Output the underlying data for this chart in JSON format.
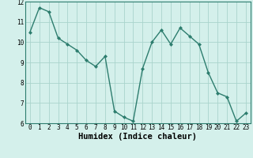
{
  "xlabel": "Humidex (Indice chaleur)",
  "ylabel": "",
  "x_values": [
    0,
    1,
    2,
    3,
    4,
    5,
    6,
    7,
    8,
    9,
    10,
    11,
    12,
    13,
    14,
    15,
    16,
    17,
    18,
    19,
    20,
    21,
    22,
    23
  ],
  "y_values": [
    10.5,
    11.7,
    11.5,
    10.2,
    9.9,
    9.6,
    9.1,
    8.8,
    9.3,
    6.6,
    6.3,
    6.1,
    8.7,
    10.0,
    10.6,
    9.9,
    10.7,
    10.3,
    9.9,
    8.5,
    7.5,
    7.3,
    6.1,
    6.5
  ],
  "line_color": "#2d7d6e",
  "marker": "D",
  "marker_size": 2.0,
  "bg_color": "#d4f0eb",
  "grid_color": "#aad4cc",
  "ylim": [
    6,
    12
  ],
  "xlim": [
    -0.5,
    23.5
  ],
  "yticks": [
    6,
    7,
    8,
    9,
    10,
    11,
    12
  ],
  "xticks": [
    0,
    1,
    2,
    3,
    4,
    5,
    6,
    7,
    8,
    9,
    10,
    11,
    12,
    13,
    14,
    15,
    16,
    17,
    18,
    19,
    20,
    21,
    22,
    23
  ],
  "tick_fontsize": 5.5,
  "xlabel_fontsize": 7.5,
  "line_width": 1.0
}
